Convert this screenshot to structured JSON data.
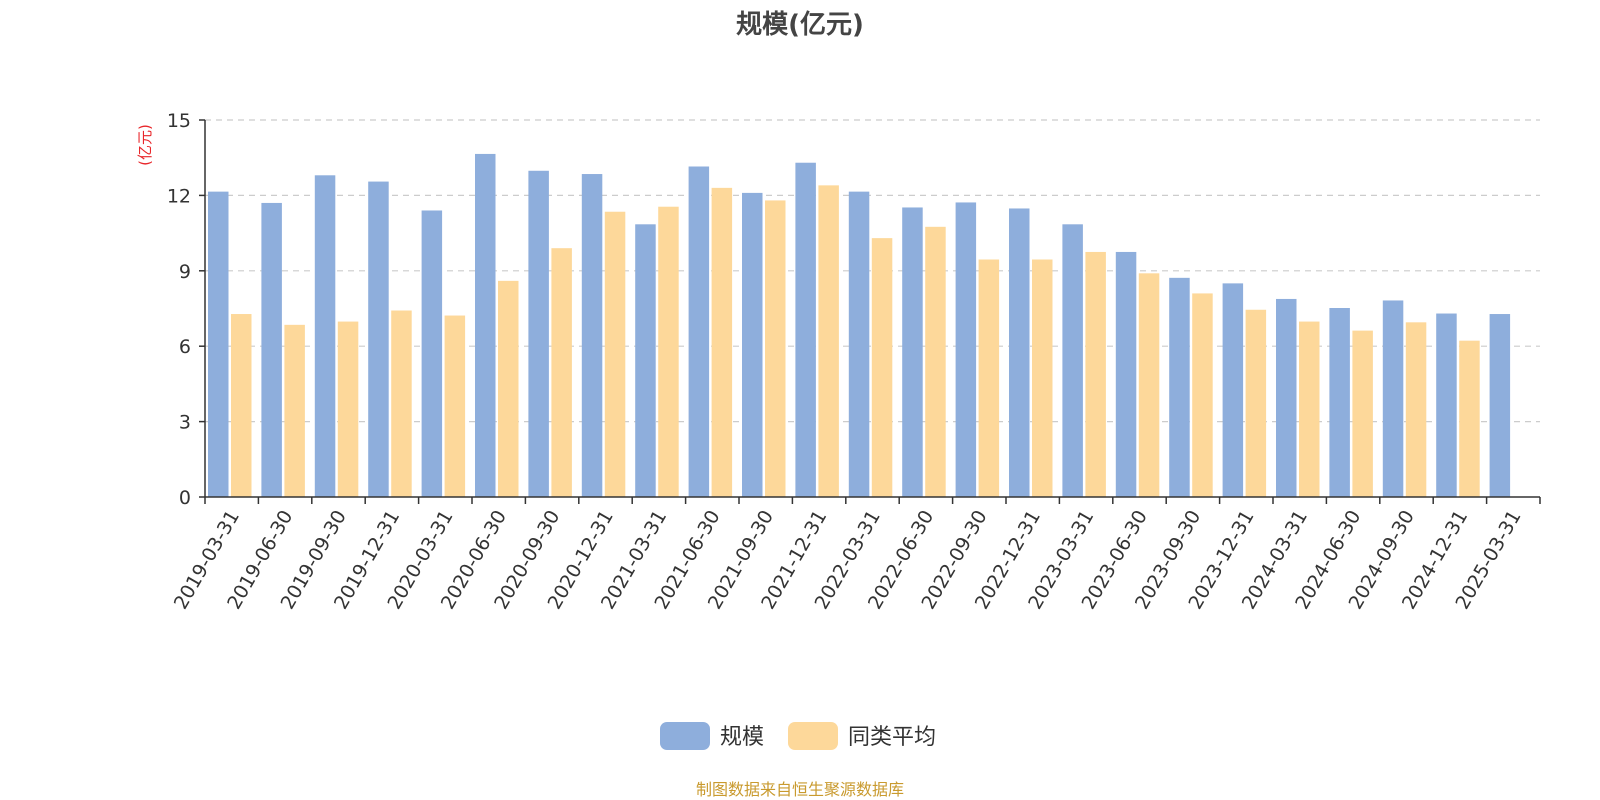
{
  "chart_data": {
    "type": "bar",
    "title": "规模(亿元)",
    "ylabel": "(亿元)",
    "xlabel": "",
    "ylim": [
      0,
      15
    ],
    "yticks": [
      0,
      3,
      6,
      9,
      12,
      15
    ],
    "grid": true,
    "legend_position": "bottom",
    "categories": [
      "2019-03-31",
      "2019-06-30",
      "2019-09-30",
      "2019-12-31",
      "2020-03-31",
      "2020-06-30",
      "2020-09-30",
      "2020-12-31",
      "2021-03-31",
      "2021-06-30",
      "2021-09-30",
      "2021-12-31",
      "2022-03-31",
      "2022-06-30",
      "2022-09-30",
      "2022-12-31",
      "2023-03-31",
      "2023-06-30",
      "2023-09-30",
      "2023-12-31",
      "2024-03-31",
      "2024-06-30",
      "2024-09-30",
      "2024-12-31",
      "2025-03-31"
    ],
    "series": [
      {
        "name": "规模",
        "color": "#8eaedc",
        "values": [
          12.15,
          11.7,
          12.8,
          12.55,
          11.4,
          13.65,
          12.98,
          12.85,
          10.85,
          13.15,
          12.1,
          13.3,
          12.15,
          11.52,
          11.72,
          11.48,
          10.85,
          9.75,
          8.72,
          8.5,
          7.88,
          7.52,
          7.82,
          7.3,
          7.28
        ]
      },
      {
        "name": "同类平均",
        "color": "#fdd89a",
        "values": [
          7.28,
          6.85,
          6.98,
          7.42,
          7.22,
          8.6,
          9.9,
          11.35,
          11.55,
          12.3,
          11.8,
          12.4,
          10.3,
          10.75,
          9.45,
          9.45,
          9.75,
          8.9,
          8.1,
          7.45,
          6.98,
          6.62,
          6.95,
          6.22,
          null
        ]
      }
    ]
  },
  "footer": {
    "source": "制图数据来自恒生聚源数据库"
  },
  "colors": {
    "axis": "#333333",
    "grid": "#cccccc",
    "unit_label": "#e8262a",
    "footer": "#c99a2e"
  }
}
